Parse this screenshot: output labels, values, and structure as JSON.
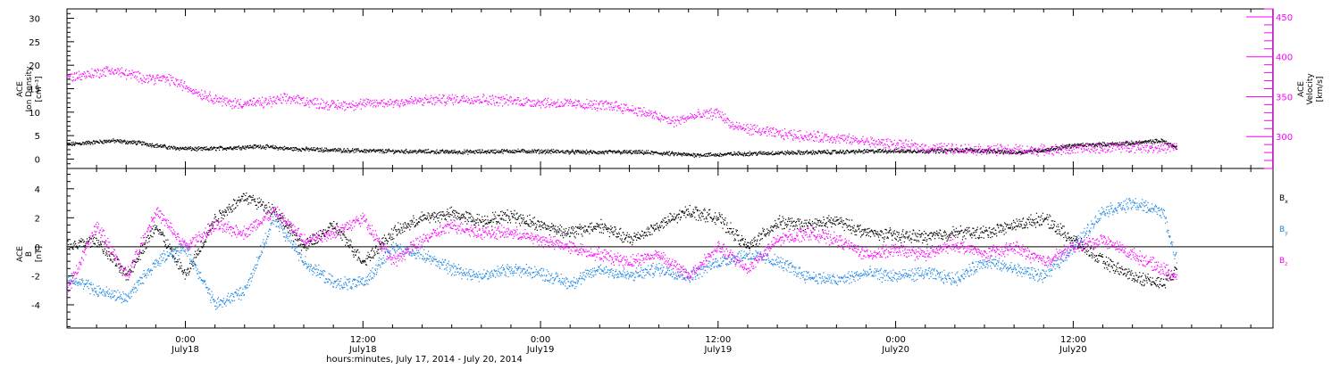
{
  "colors": {
    "black": "#000000",
    "magenta": "#ff00ff",
    "blue": "#1e88e5"
  },
  "chart_data": [
    {
      "type": "scatter",
      "panel": "top",
      "left_axis": {
        "label_lines": [
          "ACE",
          "Ion Density"
        ],
        "unit": "[cm⁻³]",
        "ylim": [
          -2,
          32
        ],
        "ticks": [
          0,
          5,
          10,
          15,
          20,
          25,
          30
        ]
      },
      "right_axis": {
        "label_lines": [
          "ACE",
          "Velocity"
        ],
        "unit": "[km/s]",
        "ylim": [
          260,
          460
        ],
        "ticks": [
          300,
          350,
          400,
          450
        ]
      },
      "x_hours": [
        0,
        3,
        5,
        7,
        9,
        11,
        13,
        15,
        18,
        21,
        24,
        27,
        30,
        33,
        36,
        37,
        39,
        41,
        42,
        44,
        45,
        48,
        52,
        55,
        58,
        61,
        64,
        66,
        68,
        70,
        72,
        74,
        75
      ],
      "series": [
        {
          "color": "black",
          "axis": "left",
          "values": [
            3.2,
            4,
            3.5,
            2.5,
            2.2,
            2.5,
            2.8,
            2.3,
            2,
            1.8,
            1.7,
            1.6,
            1.8,
            1.7,
            1.5,
            1.6,
            1.5,
            1.2,
            1,
            1,
            1.2,
            1.4,
            1.6,
            1.8,
            1.8,
            2,
            1.5,
            2,
            3,
            3.2,
            3.5,
            4,
            2.5
          ]
        },
        {
          "color": "magenta",
          "axis": "left",
          "values": [
            17.5,
            19,
            17.5,
            17,
            14,
            12,
            12,
            13,
            11.5,
            12,
            12.5,
            13,
            12.5,
            12,
            11.5,
            11.5,
            10,
            8,
            9,
            10,
            7,
            5.5,
            4.5,
            3.5,
            2.5,
            2.2,
            2,
            2,
            2.2,
            2.5,
            2.8,
            2.5,
            2.5
          ]
        }
      ]
    },
    {
      "type": "scatter",
      "panel": "bottom",
      "left_axis": {
        "label_lines": [
          "ACE",
          "B"
        ],
        "unit": "[nT]",
        "ylim": [
          -5.6,
          5.4
        ],
        "ticks": [
          -4,
          -2,
          0,
          2,
          4
        ]
      },
      "x_hours": [
        0,
        2,
        4,
        6,
        8,
        10,
        12,
        14,
        16,
        18,
        20,
        22,
        24,
        26,
        28,
        30,
        32,
        34,
        36,
        38,
        40,
        42,
        44,
        46,
        48,
        50,
        52,
        54,
        56,
        58,
        60,
        62,
        64,
        66,
        68,
        70,
        72,
        74,
        75
      ],
      "series": [
        {
          "name": "Bx",
          "color": "black",
          "values": [
            0,
            0.5,
            -2,
            1.5,
            -2,
            2,
            3.5,
            2.5,
            0,
            1.5,
            -1,
            1,
            2,
            2.3,
            1.8,
            2.2,
            1.5,
            1,
            1.5,
            0.5,
            1.5,
            2.5,
            2,
            0,
            1.7,
            1.5,
            1.8,
            1,
            0.8,
            0.7,
            1,
            1,
            1.5,
            2,
            0.5,
            -1,
            -2,
            -2.5,
            -1.5
          ]
        },
        {
          "name": "By",
          "color": "blue",
          "values": [
            -2,
            -3,
            -3.5,
            -1,
            0,
            -4,
            -3,
            2,
            -1,
            -2.5,
            -2.5,
            0,
            -0.5,
            -1.5,
            -2,
            -1.5,
            -1.8,
            -2.5,
            -1.5,
            -2,
            -1.5,
            -2,
            -1,
            -0.5,
            -1,
            -2,
            -2.3,
            -1.8,
            -2,
            -1.8,
            -2.2,
            -1,
            -1.5,
            -2,
            0,
            2.5,
            3,
            2.5,
            -1
          ]
        },
        {
          "name": "Bz",
          "color": "magenta",
          "values": [
            -3,
            1.5,
            -2,
            2.5,
            0,
            1.5,
            1,
            2.5,
            0.5,
            1,
            2,
            -1,
            0.5,
            1.5,
            1,
            1,
            0.5,
            0,
            -0.5,
            -1,
            -0.5,
            -2,
            0,
            -1.5,
            0.5,
            1,
            0.5,
            -0.5,
            -0.2,
            -0.5,
            0.2,
            -0.5,
            0,
            -1,
            0,
            0.5,
            -0.5,
            -1.5,
            -2
          ]
        }
      ],
      "legend": [
        "B",
        "B",
        "B"
      ],
      "legend_subscripts": [
        "x",
        "y",
        "z"
      ]
    }
  ],
  "x_axis": {
    "xlim": [
      0,
      81.5
    ],
    "tick_times": [
      "0:00",
      "12:00",
      "0:00",
      "12:00",
      "0:00",
      "12:00"
    ],
    "tick_dates": [
      "July18",
      "July18",
      "July19",
      "July19",
      "July20",
      "July20"
    ],
    "tick_hours": [
      8,
      20,
      32,
      44,
      56,
      68
    ],
    "label": "hours:minutes, July 17, 2014 - July 20, 2014"
  }
}
